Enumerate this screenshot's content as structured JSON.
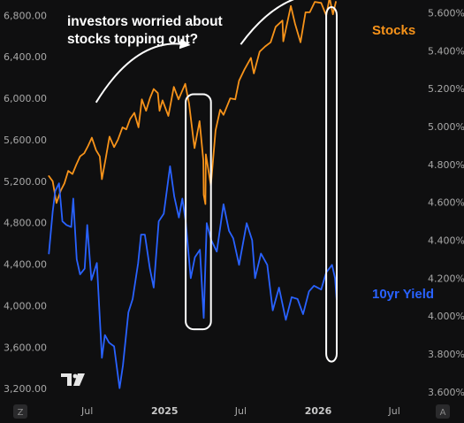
{
  "chart_data": {
    "type": "line",
    "annotation": [
      "investors worried about",
      "stocks topping out?"
    ],
    "x_ticks": [
      {
        "label": "Jul",
        "date": "2024-07-01"
      },
      {
        "label": "2025",
        "date": "2025-01-01",
        "bold": true
      },
      {
        "label": "Jul",
        "date": "2025-07-01"
      },
      {
        "label": "2026",
        "date": "2026-01-01",
        "bold": true
      },
      {
        "label": "Jul",
        "date": "2026-07-01"
      }
    ],
    "left_axis": {
      "ticks": [
        "3,200.00",
        "3,600.00",
        "4,000.00",
        "4,400.00",
        "4,800.00",
        "5,200.00",
        "5,600.00",
        "6,000.00",
        "6,400.00",
        "6,800.00"
      ],
      "ylim": [
        3150,
        6880
      ]
    },
    "right_axis": {
      "ticks": [
        "3.600%",
        "3.800%",
        "4.000%",
        "4.200%",
        "4.400%",
        "4.600%",
        "4.800%",
        "5.000%",
        "5.200%",
        "5.400%",
        "5.600%"
      ],
      "ylim": [
        3.59,
        5.63
      ]
    },
    "series": [
      {
        "name": "Stocks",
        "axis": "left",
        "color": "#f7931a",
        "points": [
          [
            "2024-04-01",
            5250
          ],
          [
            "2024-04-10",
            5200
          ],
          [
            "2024-04-19",
            4990
          ],
          [
            "2024-04-29",
            5110
          ],
          [
            "2024-05-08",
            5180
          ],
          [
            "2024-05-17",
            5300
          ],
          [
            "2024-05-27",
            5270
          ],
          [
            "2024-06-05",
            5360
          ],
          [
            "2024-06-14",
            5440
          ],
          [
            "2024-06-24",
            5470
          ],
          [
            "2024-07-03",
            5540
          ],
          [
            "2024-07-12",
            5620
          ],
          [
            "2024-07-22",
            5500
          ],
          [
            "2024-07-31",
            5440
          ],
          [
            "2024-08-05",
            5220
          ],
          [
            "2024-08-14",
            5420
          ],
          [
            "2024-08-23",
            5630
          ],
          [
            "2024-09-03",
            5530
          ],
          [
            "2024-09-12",
            5600
          ],
          [
            "2024-09-23",
            5720
          ],
          [
            "2024-10-02",
            5700
          ],
          [
            "2024-10-11",
            5800
          ],
          [
            "2024-10-21",
            5860
          ],
          [
            "2024-10-31",
            5720
          ],
          [
            "2024-11-08",
            5990
          ],
          [
            "2024-11-18",
            5880
          ],
          [
            "2024-11-27",
            6000
          ],
          [
            "2024-12-06",
            6090
          ],
          [
            "2024-12-16",
            6050
          ],
          [
            "2024-12-20",
            5880
          ],
          [
            "2024-12-27",
            5980
          ],
          [
            "2025-01-10",
            5830
          ],
          [
            "2025-01-23",
            6110
          ],
          [
            "2025-02-03",
            5990
          ],
          [
            "2025-02-19",
            6140
          ],
          [
            "2025-02-28",
            5950
          ],
          [
            "2025-03-10",
            5620
          ],
          [
            "2025-03-13",
            5520
          ],
          [
            "2025-03-25",
            5780
          ],
          [
            "2025-04-03",
            5400
          ],
          [
            "2025-04-04",
            5070
          ],
          [
            "2025-04-08",
            4980
          ],
          [
            "2025-04-09",
            5460
          ],
          [
            "2025-04-21",
            5160
          ],
          [
            "2025-05-02",
            5690
          ],
          [
            "2025-05-13",
            5890
          ],
          [
            "2025-05-21",
            5840
          ],
          [
            "2025-06-06",
            6000
          ],
          [
            "2025-06-18",
            5990
          ],
          [
            "2025-06-27",
            6170
          ],
          [
            "2025-07-10",
            6280
          ],
          [
            "2025-07-25",
            6390
          ],
          [
            "2025-08-01",
            6240
          ],
          [
            "2025-08-15",
            6450
          ],
          [
            "2025-08-28",
            6500
          ],
          [
            "2025-09-10",
            6540
          ],
          [
            "2025-09-22",
            6690
          ],
          [
            "2025-10-08",
            6750
          ],
          [
            "2025-10-10",
            6550
          ],
          [
            "2025-10-28",
            6890
          ],
          [
            "2025-11-07",
            6720
          ],
          [
            "2025-11-20",
            6540
          ],
          [
            "2025-12-02",
            6830
          ],
          [
            "2025-12-12",
            6830
          ],
          [
            "2025-12-24",
            6930
          ],
          [
            "2026-01-08",
            6920
          ],
          [
            "2026-01-20",
            6800
          ],
          [
            "2026-01-28",
            6970
          ],
          [
            "2026-02-05",
            6810
          ],
          [
            "2026-02-12",
            6930
          ]
        ]
      },
      {
        "name": "10yr Yield",
        "axis": "right",
        "color": "#2962ff",
        "points": [
          [
            "2024-04-01",
            4.33
          ],
          [
            "2024-04-10",
            4.55
          ],
          [
            "2024-04-16",
            4.66
          ],
          [
            "2024-04-25",
            4.7
          ],
          [
            "2024-05-03",
            4.5
          ],
          [
            "2024-05-13",
            4.48
          ],
          [
            "2024-05-24",
            4.47
          ],
          [
            "2024-05-29",
            4.62
          ],
          [
            "2024-06-06",
            4.3
          ],
          [
            "2024-06-14",
            4.22
          ],
          [
            "2024-06-25",
            4.25
          ],
          [
            "2024-07-01",
            4.48
          ],
          [
            "2024-07-11",
            4.19
          ],
          [
            "2024-07-24",
            4.28
          ],
          [
            "2024-08-05",
            3.78
          ],
          [
            "2024-08-12",
            3.9
          ],
          [
            "2024-08-22",
            3.86
          ],
          [
            "2024-09-03",
            3.84
          ],
          [
            "2024-09-16",
            3.62
          ],
          [
            "2024-09-24",
            3.74
          ],
          [
            "2024-10-07",
            4.02
          ],
          [
            "2024-10-17",
            4.09
          ],
          [
            "2024-10-30",
            4.28
          ],
          [
            "2024-11-06",
            4.43
          ],
          [
            "2024-11-15",
            4.43
          ],
          [
            "2024-11-27",
            4.25
          ],
          [
            "2024-12-06",
            4.15
          ],
          [
            "2024-12-18",
            4.5
          ],
          [
            "2024-12-30",
            4.54
          ],
          [
            "2025-01-14",
            4.79
          ],
          [
            "2025-01-24",
            4.63
          ],
          [
            "2025-02-04",
            4.52
          ],
          [
            "2025-02-12",
            4.62
          ],
          [
            "2025-02-20",
            4.5
          ],
          [
            "2025-03-04",
            4.2
          ],
          [
            "2025-03-14",
            4.31
          ],
          [
            "2025-03-26",
            4.35
          ],
          [
            "2025-04-04",
            3.99
          ],
          [
            "2025-04-11",
            4.49
          ],
          [
            "2025-04-22",
            4.4
          ],
          [
            "2025-05-05",
            4.34
          ],
          [
            "2025-05-21",
            4.59
          ],
          [
            "2025-06-03",
            4.45
          ],
          [
            "2025-06-13",
            4.41
          ],
          [
            "2025-06-27",
            4.27
          ],
          [
            "2025-07-15",
            4.49
          ],
          [
            "2025-07-28",
            4.4
          ],
          [
            "2025-08-04",
            4.2
          ],
          [
            "2025-08-18",
            4.33
          ],
          [
            "2025-09-02",
            4.27
          ],
          [
            "2025-09-15",
            4.03
          ],
          [
            "2025-09-30",
            4.15
          ],
          [
            "2025-10-16",
            3.98
          ],
          [
            "2025-10-30",
            4.1
          ],
          [
            "2025-11-13",
            4.09
          ],
          [
            "2025-11-26",
            4.01
          ],
          [
            "2025-12-10",
            4.13
          ],
          [
            "2025-12-22",
            4.16
          ],
          [
            "2026-01-08",
            4.14
          ],
          [
            "2026-01-20",
            4.23
          ],
          [
            "2026-02-03",
            4.27
          ],
          [
            "2026-02-10",
            4.2
          ],
          [
            "2026-02-14",
            4.08
          ]
        ]
      }
    ],
    "x_range": [
      "2024-03-25",
      "2026-08-20"
    ],
    "highlights": [
      {
        "from": "2025-02-20",
        "to": "2025-04-21"
      },
      {
        "from": "2026-01-20",
        "to": "2026-02-14"
      }
    ],
    "grid": false,
    "legend": "inline-right",
    "corner_buttons": [
      "Z",
      "A"
    ]
  }
}
